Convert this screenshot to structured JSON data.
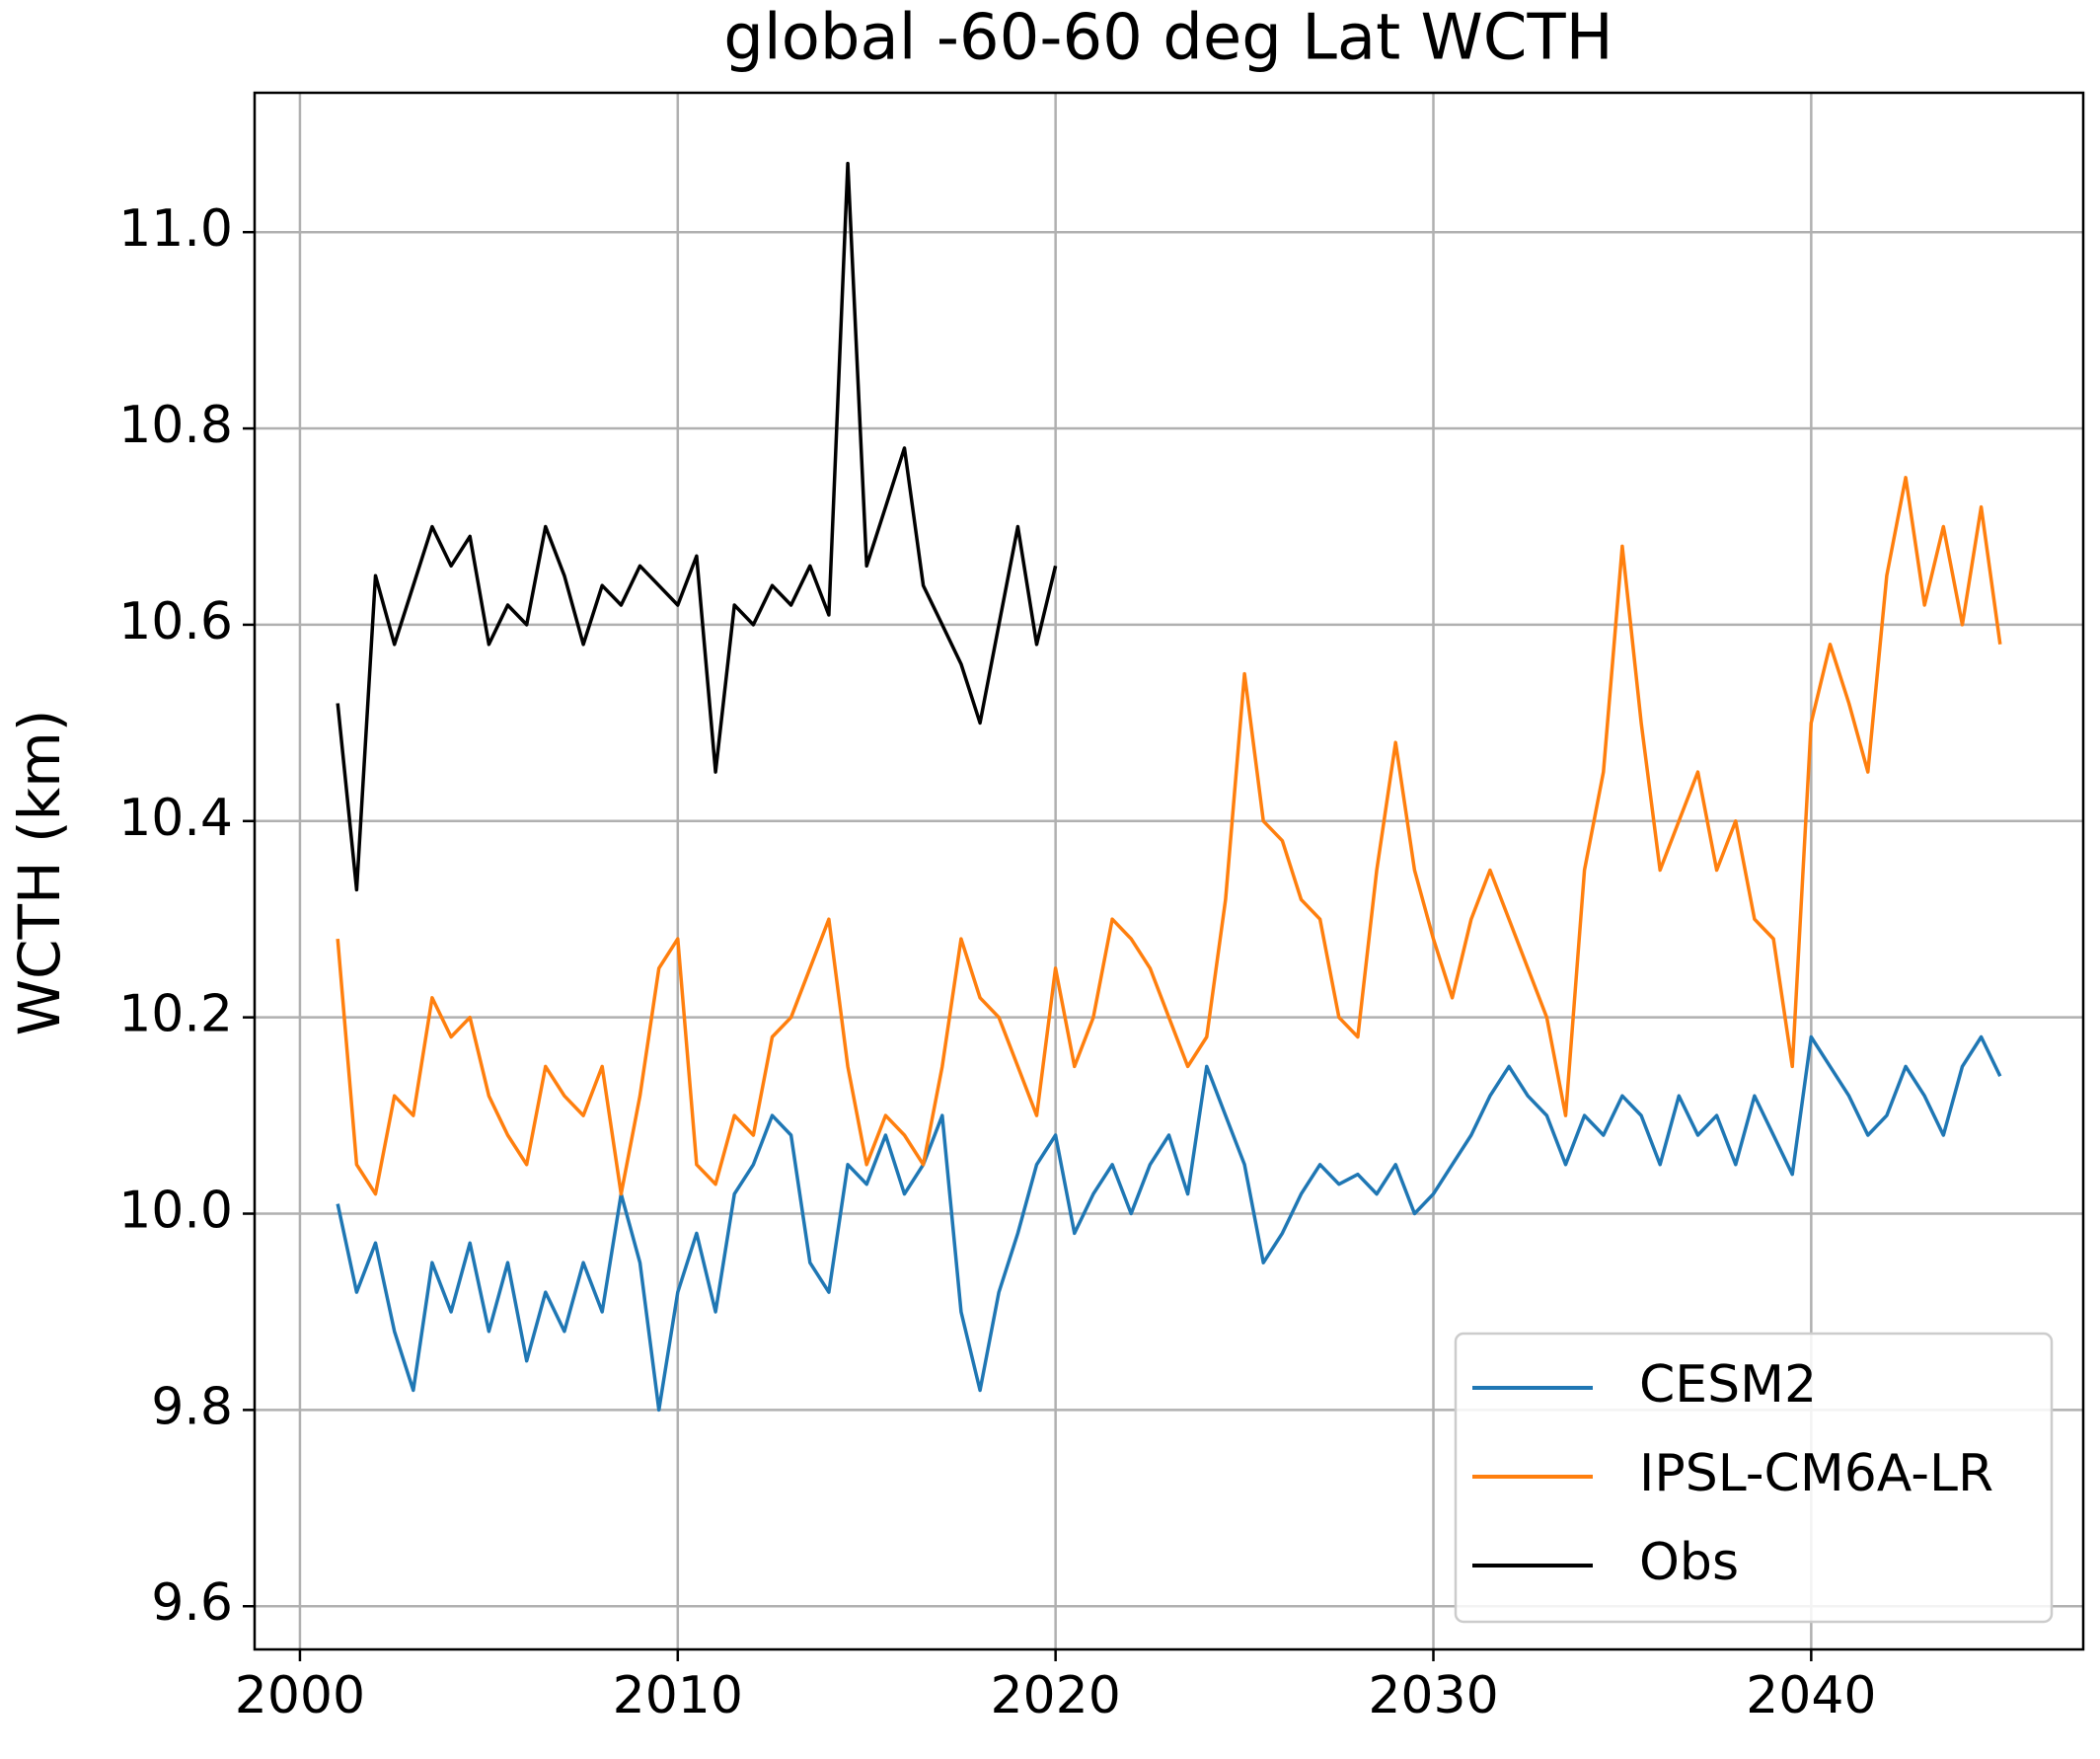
{
  "chart_data": {
    "type": "line",
    "title": "global -60-60  deg Lat WCTH",
    "ylabel": "WCTH (km)",
    "xlim": [
      1998.8,
      2047.2
    ],
    "ylim": [
      9.556,
      11.142
    ],
    "xticks": [
      2000,
      2010,
      2020,
      2030,
      2040
    ],
    "yticks": [
      9.6,
      9.8,
      {
        "value": 10.0,
        "label": "10.0"
      },
      10.2,
      10.4,
      10.6,
      10.8,
      {
        "value": 11.0,
        "label": "11.0"
      }
    ],
    "grid": true,
    "legend": "lower right",
    "x": [
      2001,
      2001.5,
      2002,
      2002.5,
      2003,
      2003.5,
      2004,
      2004.5,
      2005,
      2005.5,
      2006,
      2006.5,
      2007,
      2007.5,
      2008,
      2008.5,
      2009,
      2009.5,
      2010,
      2010.5,
      2011,
      2011.5,
      2012,
      2012.5,
      2013,
      2013.5,
      2014,
      2014.5,
      2015,
      2015.5,
      2016,
      2016.5,
      2017,
      2017.5,
      2018,
      2018.5,
      2019,
      2019.5,
      2020,
      2020.5,
      2021,
      2021.5,
      2022,
      2022.5,
      2023,
      2023.5,
      2024,
      2024.5,
      2025,
      2025.5,
      2026,
      2026.5,
      2027,
      2027.5,
      2028,
      2028.5,
      2029,
      2029.5,
      2030,
      2030.5,
      2031,
      2031.5,
      2032,
      2032.5,
      2033,
      2033.5,
      2034,
      2034.5,
      2035,
      2035.5,
      2036,
      2036.5,
      2037,
      2037.5,
      2038,
      2038.5,
      2039,
      2039.5,
      2040,
      2040.5,
      2041,
      2041.5,
      2042,
      2042.5,
      2043,
      2043.5,
      2044,
      2044.5,
      2045
    ],
    "series": [
      {
        "name": "CESM2",
        "color": "#1f77b4",
        "values": [
          10.01,
          9.92,
          9.97,
          9.88,
          9.82,
          9.95,
          9.9,
          9.97,
          9.88,
          9.95,
          9.85,
          9.92,
          9.88,
          9.95,
          9.9,
          10.02,
          9.95,
          9.8,
          9.92,
          9.98,
          9.9,
          10.02,
          10.05,
          10.1,
          10.08,
          9.95,
          9.92,
          10.05,
          10.03,
          10.08,
          10.02,
          10.05,
          10.1,
          9.9,
          9.82,
          9.92,
          9.98,
          10.05,
          10.08,
          9.98,
          10.02,
          10.05,
          10.0,
          10.05,
          10.08,
          10.02,
          10.15,
          10.1,
          10.05,
          9.95,
          9.98,
          10.02,
          10.05,
          10.03,
          10.04,
          10.02,
          10.05,
          10.0,
          10.02,
          10.05,
          10.08,
          10.12,
          10.15,
          10.12,
          10.1,
          10.05,
          10.1,
          10.08,
          10.12,
          10.1,
          10.05,
          10.12,
          10.08,
          10.1,
          10.05,
          10.12,
          10.08,
          10.04,
          10.18,
          10.15,
          10.12,
          10.08,
          10.1,
          10.15,
          10.12,
          10.08,
          10.15,
          10.18,
          10.14
        ]
      },
      {
        "name": "IPSL-CM6A-LR",
        "color": "#ff7f0e",
        "values": [
          10.28,
          10.05,
          10.02,
          10.12,
          10.1,
          10.22,
          10.18,
          10.2,
          10.12,
          10.08,
          10.05,
          10.15,
          10.12,
          10.1,
          10.15,
          10.02,
          10.12,
          10.25,
          10.28,
          10.05,
          10.03,
          10.1,
          10.08,
          10.18,
          10.2,
          10.25,
          10.3,
          10.15,
          10.05,
          10.1,
          10.08,
          10.05,
          10.15,
          10.28,
          10.22,
          10.2,
          10.15,
          10.1,
          10.25,
          10.15,
          10.2,
          10.3,
          10.28,
          10.25,
          10.2,
          10.15,
          10.18,
          10.32,
          10.55,
          10.4,
          10.38,
          10.32,
          10.3,
          10.2,
          10.18,
          10.35,
          10.48,
          10.35,
          10.28,
          10.22,
          10.3,
          10.35,
          10.3,
          10.25,
          10.2,
          10.1,
          10.35,
          10.45,
          10.68,
          10.5,
          10.35,
          10.4,
          10.45,
          10.35,
          10.4,
          10.3,
          10.28,
          10.15,
          10.5,
          10.58,
          10.52,
          10.45,
          10.65,
          10.75,
          10.62,
          10.7,
          10.6,
          10.72,
          10.58
        ]
      },
      {
        "name": "Obs",
        "color": "#000000",
        "values": [
          10.52,
          10.33,
          10.65,
          10.58,
          10.64,
          10.7,
          10.66,
          10.69,
          10.58,
          10.62,
          10.6,
          10.7,
          10.65,
          10.58,
          10.64,
          10.62,
          10.66,
          10.64,
          10.62,
          10.67,
          10.45,
          10.62,
          10.6,
          10.64,
          10.62,
          10.66,
          10.61,
          11.07,
          10.66,
          10.72,
          10.78,
          10.64,
          10.6,
          10.56,
          10.5,
          10.6,
          10.7,
          10.58,
          10.66,
          null,
          null,
          null,
          null,
          null,
          null,
          null,
          null,
          null,
          null,
          null,
          null,
          null,
          null,
          null,
          null,
          null,
          null,
          null,
          null,
          null,
          null,
          null,
          null,
          null,
          null,
          null,
          null,
          null,
          null,
          null,
          null,
          null,
          null,
          null,
          null,
          null,
          null,
          null,
          null,
          null,
          null,
          null,
          null,
          null,
          null,
          null,
          null,
          null,
          null
        ]
      }
    ]
  }
}
